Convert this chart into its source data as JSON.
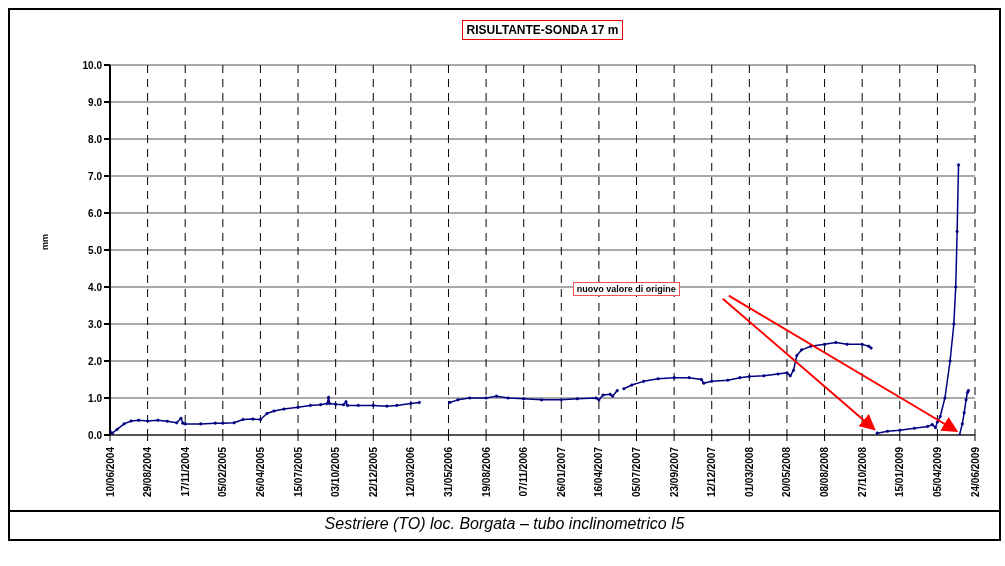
{
  "chart_data": {
    "type": "line",
    "title": "RISULTANTE-SONDA 17 m",
    "ylabel": "mm",
    "annotations": [
      "nuovo valore di origine",
      "Sestriere (TO) loc. Borgata – tubo inclinometrico I5"
    ],
    "x": [
      "2004-06-10",
      "2004-06-15",
      "2004-06-25",
      "2004-07-10",
      "2004-07-25",
      "2004-08-10",
      "2004-08-29",
      "2004-09-20",
      "2004-10-10",
      "2004-10-30",
      "2004-11-08",
      "2004-11-12",
      "2004-11-17",
      "2004-12-20",
      "2005-01-20",
      "2005-02-05",
      "2005-03-01",
      "2005-03-20",
      "2005-04-10",
      "2005-04-26",
      "2005-05-10",
      "2005-05-25",
      "2005-06-15",
      "2005-07-15",
      "2005-08-10",
      "2005-09-01",
      "2005-09-15",
      "2005-09-18",
      "2005-09-20",
      "2005-10-03",
      "2005-10-20",
      "2005-10-25",
      "2005-10-28",
      "2005-11-20",
      "2005-12-22",
      "2006-01-20",
      "2006-02-10",
      "2006-03-12",
      "2006-03-30",
      "2006-04-30",
      "2006-06-03",
      "2006-06-20",
      "2006-07-15",
      "2006-08-19",
      "2006-09-10",
      "2006-10-05",
      "2006-11-07",
      "2006-12-15",
      "2007-01-26",
      "2007-03-01",
      "2007-04-10",
      "2007-04-16",
      "2007-04-25",
      "2007-05-10",
      "2007-05-15",
      "2007-05-25",
      "2007-05-30",
      "2007-06-08",
      "2007-06-25",
      "2007-07-20",
      "2007-08-20",
      "2007-09-23",
      "2007-10-25",
      "2007-11-20",
      "2007-11-25",
      "2007-12-12",
      "2008-01-15",
      "2008-02-10",
      "2008-03-01",
      "2008-04-01",
      "2008-05-01",
      "2008-05-20",
      "2008-05-27",
      "2008-06-03",
      "2008-06-10",
      "2008-06-20",
      "2008-07-10",
      "2008-08-08",
      "2008-09-01",
      "2008-09-25",
      "2008-10-27",
      "2008-11-10",
      "2008-11-15",
      "2008-11-22",
      "2008-11-28",
      "2008-12-20",
      "2009-01-15",
      "2009-02-15",
      "2009-03-15",
      "2009-03-25",
      "2009-04-01",
      "2009-04-05",
      "2009-04-11",
      "2009-04-21",
      "2009-05-02",
      "2009-05-10",
      "2009-05-14",
      "2009-05-17",
      "2009-05-20",
      "2009-05-21",
      "2009-05-22",
      "2009-05-28",
      "2009-06-01",
      "2009-06-05",
      "2009-06-08",
      "2009-06-10"
    ],
    "series": [
      {
        "color": "#000080",
        "values": [
          0.1,
          0.05,
          0.15,
          0.3,
          0.38,
          0.4,
          0.38,
          0.4,
          0.37,
          0.33,
          0.45,
          0.32,
          0.3,
          0.3,
          0.32,
          0.32,
          0.33,
          0.42,
          0.43,
          0.42,
          0.58,
          0.65,
          0.7,
          0.75,
          0.8,
          0.82,
          0.85,
          1.02,
          0.85,
          0.83,
          0.82,
          0.9,
          0.8,
          0.8,
          0.8,
          0.78,
          0.8,
          0.85,
          0.88,
          null,
          0.88,
          0.95,
          1.0,
          1.0,
          1.05,
          1.0,
          0.98,
          0.95,
          0.95,
          0.98,
          1.0,
          0.95,
          1.08,
          1.1,
          1.05,
          1.2,
          null,
          1.25,
          1.35,
          1.45,
          1.52,
          1.55,
          1.55,
          1.5,
          1.4,
          1.45,
          1.48,
          1.55,
          1.58,
          1.6,
          1.65,
          1.68,
          1.6,
          1.75,
          2.15,
          2.3,
          2.4,
          2.45,
          2.5,
          2.45,
          2.45,
          2.4,
          2.35,
          null,
          0.05,
          0.1,
          0.13,
          0.18,
          0.23,
          0.28,
          0.2,
          0.35,
          0.5,
          1.0,
          2.0,
          3.0,
          4.0,
          5.5,
          7.3,
          null,
          0.0,
          0.3,
          0.6,
          0.95,
          1.15,
          1.2
        ]
      }
    ],
    "xlim": [
      "2004-06-10",
      "2009-06-24"
    ],
    "xticks": [
      {
        "value": "2004-06-10",
        "label": "10/06/2004"
      },
      {
        "value": "2004-08-29",
        "label": "29/08/2004"
      },
      {
        "value": "2004-11-17",
        "label": "17/11/2004"
      },
      {
        "value": "2005-02-05",
        "label": "05/02/2005"
      },
      {
        "value": "2005-04-26",
        "label": "26/04/2005"
      },
      {
        "value": "2005-07-15",
        "label": "15/07/2005"
      },
      {
        "value": "2005-10-03",
        "label": "03/10/2005"
      },
      {
        "value": "2005-12-22",
        "label": "22/12/2005"
      },
      {
        "value": "2006-03-12",
        "label": "12/03/2006"
      },
      {
        "value": "2006-05-31",
        "label": "31/05/2006"
      },
      {
        "value": "2006-08-19",
        "label": "19/08/2006"
      },
      {
        "value": "2006-11-07",
        "label": "07/11/2006"
      },
      {
        "value": "2007-01-26",
        "label": "26/01/2007"
      },
      {
        "value": "2007-04-16",
        "label": "16/04/2007"
      },
      {
        "value": "2007-07-05",
        "label": "05/07/2007"
      },
      {
        "value": "2007-09-23",
        "label": "23/09/2007"
      },
      {
        "value": "2007-12-12",
        "label": "12/12/2007"
      },
      {
        "value": "2008-03-01",
        "label": "01/03/2008"
      },
      {
        "value": "2008-05-20",
        "label": "20/05/2008"
      },
      {
        "value": "2008-08-08",
        "label": "08/08/2008"
      },
      {
        "value": "2008-10-27",
        "label": "27/10/2008"
      },
      {
        "value": "2009-01-15",
        "label": "15/01/2009"
      },
      {
        "value": "2009-04-05",
        "label": "05/04/2009"
      },
      {
        "value": "2009-06-24",
        "label": "24/06/2009"
      }
    ],
    "ylim": [
      0,
      10
    ],
    "yticks": [
      {
        "value": 0,
        "label": "0.0"
      },
      {
        "value": 1,
        "label": "1.0"
      },
      {
        "value": 2,
        "label": "2.0"
      },
      {
        "value": 3,
        "label": "3.0"
      },
      {
        "value": 4,
        "label": "4.0"
      },
      {
        "value": 5,
        "label": "5.0"
      },
      {
        "value": 6,
        "label": "6.0"
      },
      {
        "value": 7,
        "label": "7.0"
      },
      {
        "value": 8,
        "label": "8.0"
      },
      {
        "value": 9,
        "label": "9.0"
      },
      {
        "value": 10,
        "label": "10.0"
      }
    ],
    "grid": true,
    "marker": "circle",
    "line_style": "solid",
    "legend": false
  }
}
